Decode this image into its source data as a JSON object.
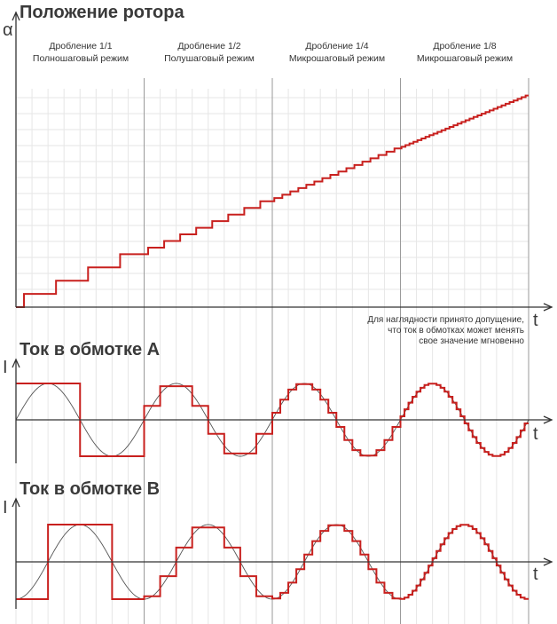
{
  "colors": {
    "step": "#c8201e",
    "sine": "#555555",
    "axis": "#333333",
    "grid_minor": "#e6e6e6",
    "grid_major": "#9a9a9a"
  },
  "rotor": {
    "title": "Положение ротора",
    "y_label": "α",
    "x_label": "t",
    "note": [
      "Для наглядности принято допущение,",
      "что ток в обмотках может менять",
      "свое значение мгновенно"
    ]
  },
  "modes": [
    {
      "name": "Дробление 1/1",
      "desc": "Полношаговый режим",
      "microsteps": 1
    },
    {
      "name": "Дробление 1/2",
      "desc": "Полушаговый режим",
      "microsteps": 2
    },
    {
      "name": "Дробление 1/4",
      "desc": "Микрошаговый режим",
      "microsteps": 4
    },
    {
      "name": "Дробление 1/8",
      "desc": "Микрошаговый режим",
      "microsteps": 8
    }
  ],
  "coil_a": {
    "title": "Ток в обмотке A",
    "y_label": "I",
    "x_label": "t",
    "phase": "sin"
  },
  "coil_b": {
    "title": "Ток в обмотке B",
    "y_label": "I",
    "x_label": "t",
    "phase": "-cos"
  },
  "chart_data": [
    {
      "type": "line",
      "title": "Положение ротора",
      "ylabel": "α",
      "xlabel": "t",
      "series": [
        {
          "values": [
            0,
            1,
            2,
            3,
            4,
            4.5,
            5,
            5.5,
            6,
            6.5,
            7,
            7.5,
            8,
            8.25,
            8.5,
            8.75,
            9,
            9.25,
            9.5,
            9.75,
            10,
            10.25,
            10.5,
            10.75,
            11,
            11.25,
            11.5,
            11.75,
            12,
            12.125,
            12.25,
            12.375,
            12.5,
            12.625,
            12.75,
            12.875,
            13,
            13.125,
            13.25,
            13.375,
            13.5,
            13.625,
            13.75,
            13.875,
            14,
            14.125,
            14.25,
            14.375,
            14.5,
            14.625,
            14.75,
            14.875,
            15,
            15.125,
            15.25,
            15.375,
            15.5,
            15.625,
            15.75,
            15.875,
            16
          ]
        }
      ]
    },
    {
      "type": "line",
      "title": "Ток в обмотке A",
      "ylabel": "I",
      "xlabel": "t",
      "x_periods": 4,
      "microsteps_per_period": [
        1,
        2,
        4,
        8
      ]
    },
    {
      "type": "line",
      "title": "Ток в обмотке B",
      "ylabel": "I",
      "xlabel": "t",
      "x_periods": 4,
      "microsteps_per_period": [
        1,
        2,
        4,
        8
      ]
    }
  ]
}
